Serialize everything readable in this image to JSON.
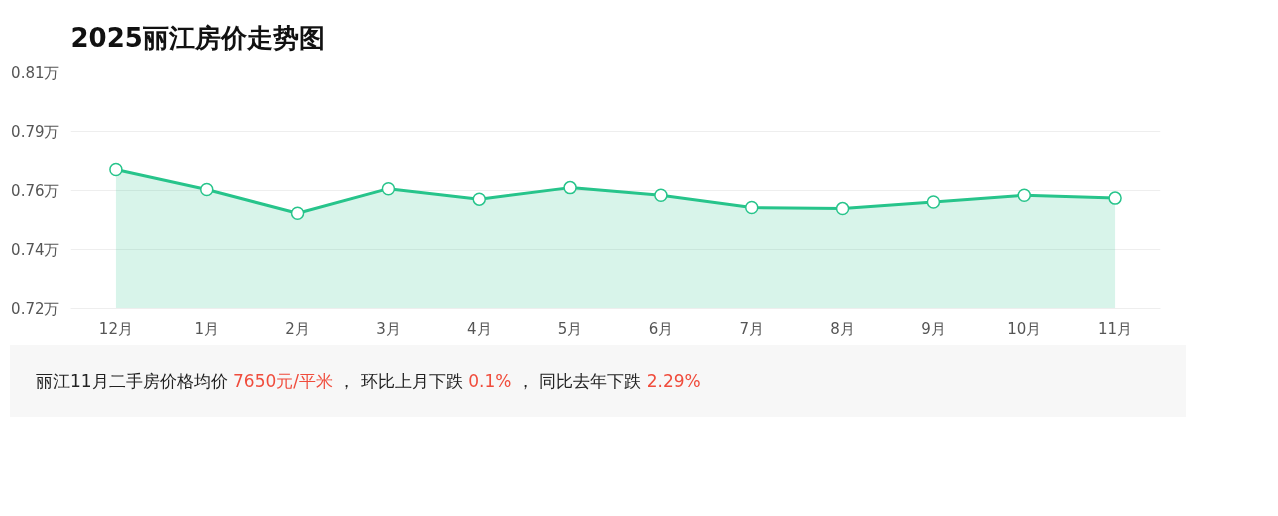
{
  "chart_data": {
    "type": "area",
    "title": "2025丽江房价走势图",
    "categories": [
      "12月",
      "1月",
      "2月",
      "3月",
      "4月",
      "5月",
      "6月",
      "7月",
      "8月",
      "9月",
      "10月",
      "11月"
    ],
    "series": [
      {
        "color": "#27c48b",
        "values": [
          0.773,
          0.7654,
          0.7563,
          0.7657,
          0.7617,
          0.7661,
          0.7632,
          0.7585,
          0.7581,
          0.7606,
          0.7632,
          0.7621
        ]
      }
    ],
    "ylim": [
      0.72,
      0.81
    ],
    "yticks": [
      {
        "value": 0.72,
        "label": "0.72万"
      },
      {
        "value": 0.7425,
        "label": "0.74万"
      },
      {
        "value": 0.765,
        "label": "0.76万"
      },
      {
        "value": 0.7875,
        "label": "0.79万"
      },
      {
        "value": 0.81,
        "label": "0.81万"
      }
    ],
    "grid": "y",
    "marker": "circle",
    "annotations": [
      "丽江11月二手房价格均价 7650元/平米 ， 环比上月下跌 0.1% ， 同比去年下跌 2.29%"
    ]
  }
}
